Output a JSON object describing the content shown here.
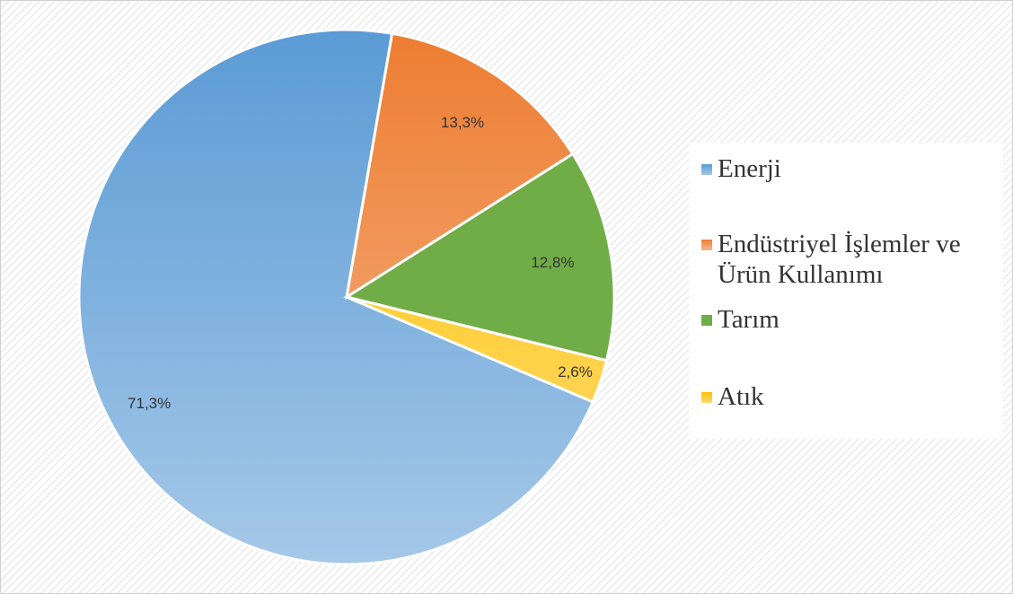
{
  "chart_data": {
    "type": "pie",
    "categories": [
      "Enerji",
      "Endüstriyel İşlemler ve Ürün Kullanımı",
      "Tarım",
      "Atık"
    ],
    "values": [
      71.3,
      13.3,
      12.8,
      2.6
    ],
    "value_labels": [
      "71,3%",
      "13,3%",
      "12,8%",
      "2,6%"
    ],
    "colors": [
      "#5b9bd5",
      "#ed7d31",
      "#70ad47",
      "#ffc000"
    ],
    "legend": "right"
  }
}
